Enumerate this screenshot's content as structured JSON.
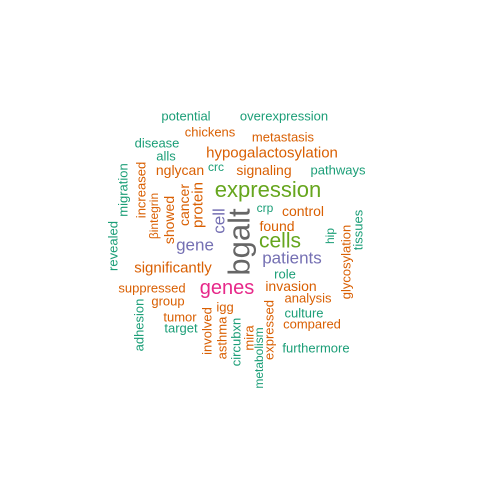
{
  "words": {
    "bgalt": "bgalt",
    "expression": "expression",
    "cells": "cells",
    "genes": "genes",
    "patients": "patients",
    "gene": "gene",
    "cell": "cell",
    "significantly": "significantly",
    "cancer": "cancer",
    "protein": "protein",
    "showed": "showed",
    "invasion": "invasion",
    "found": "found",
    "signaling": "signaling",
    "nglycan": "nglycan",
    "hypogalactosylation": "hypogalactosylation",
    "metastasis": "metastasis",
    "chickens": "chickens",
    "potential": "potential",
    "overexpression": "overexpression",
    "disease": "disease",
    "alls": "alls",
    "crc": "crc",
    "pathways": "pathways",
    "migration": "migration",
    "increased": "increased",
    "bintegrin": "βintegrin",
    "crp": "crp",
    "control": "control",
    "revealed": "revealed",
    "hip": "hip",
    "glycosylation": "glycosylation",
    "tissues": "tissues",
    "role": "role",
    "suppressed": "suppressed",
    "group": "group",
    "analysis": "analysis",
    "igg": "igg",
    "tumor": "tumor",
    "target": "target",
    "adhesion": "adhesion",
    "culture": "culture",
    "compared": "compared",
    "involved": "involved",
    "asthma": "asthma",
    "circubxn": "circubxn",
    "mira": "mira",
    "metabolism": "metabolism",
    "expressed": "expressed",
    "furthermore": "furthermore"
  },
  "colors": {
    "teal": "#1b9e77",
    "orange": "#d95f02",
    "purple": "#7570b3",
    "pink": "#e7298a",
    "green": "#66a61e",
    "gray": "#666666"
  }
}
